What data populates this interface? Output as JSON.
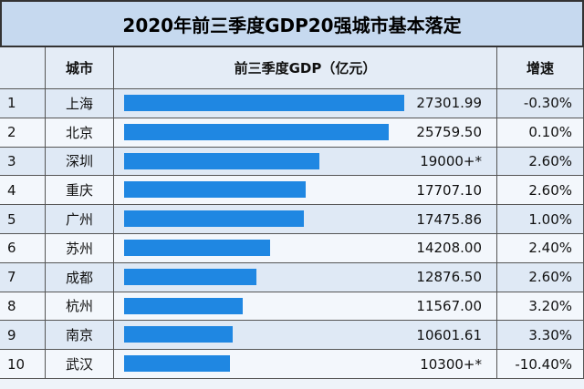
{
  "chart_data": {
    "type": "table_bar",
    "title": "2020年前三季度GDP20强城市基本落定",
    "columns": [
      "城市",
      "前三季度GDP（亿元）",
      "增速"
    ],
    "ranks": [
      1,
      2,
      3,
      4,
      5,
      6,
      7,
      8,
      9,
      10
    ],
    "categories": [
      "上海",
      "北京",
      "深圳",
      "重庆",
      "广州",
      "苏州",
      "成都",
      "杭州",
      "南京",
      "武汉"
    ],
    "values": [
      27301.99,
      25759.5,
      19000,
      17707.1,
      17475.86,
      14208,
      12876.5,
      11567,
      10601.61,
      10300
    ],
    "value_labels": [
      "27301.99",
      "25759.50",
      "19000+*",
      "17707.10",
      "17475.86",
      "14208.00",
      "12876.50",
      "11567.00",
      "10601.61",
      "10300+*"
    ],
    "growth": [
      "-0.30%",
      "0.10%",
      "2.60%",
      "2.60%",
      "1.00%",
      "2.40%",
      "2.60%",
      "3.20%",
      "3.30%",
      "-10.40%"
    ],
    "color": "#1f87e2",
    "xlim": [
      0,
      30000
    ]
  }
}
